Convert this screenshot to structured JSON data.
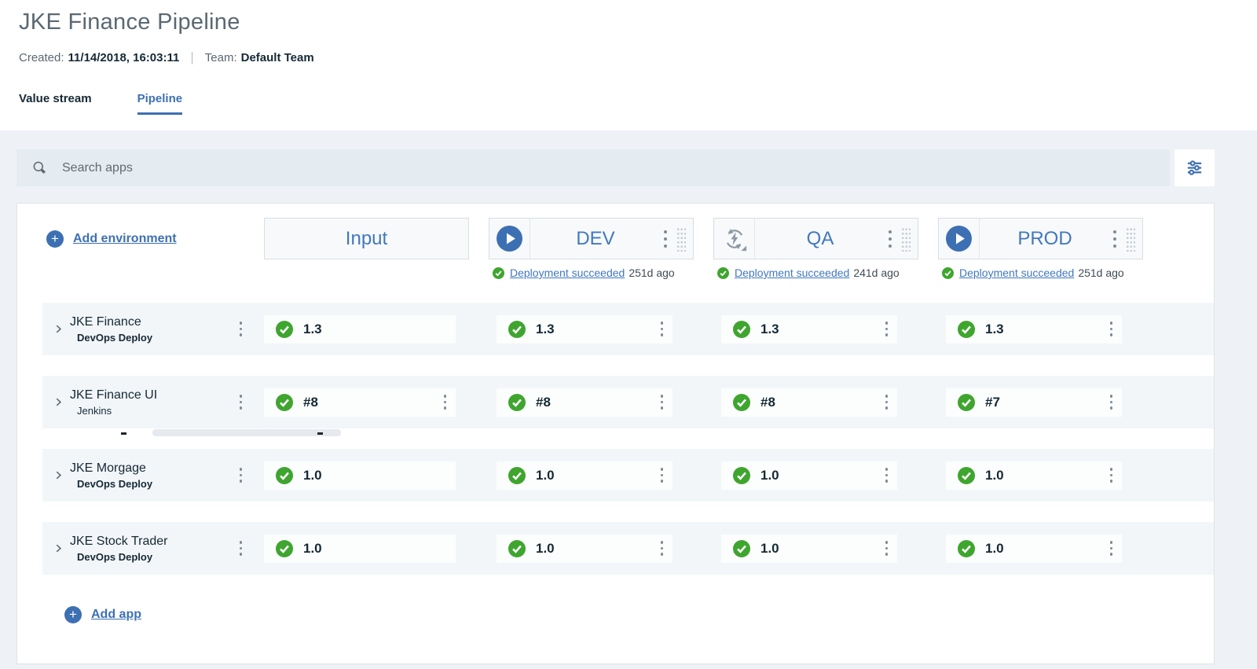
{
  "header": {
    "title": "JKE Finance Pipeline",
    "created_label": "Created:",
    "created_value": "11/14/2018, 16:03:11",
    "team_label": "Team:",
    "team_value": "Default Team"
  },
  "tabs": [
    {
      "label": "Value stream",
      "active": false
    },
    {
      "label": "Pipeline",
      "active": true
    }
  ],
  "search": {
    "placeholder": "Search apps",
    "icon": "search-icon",
    "filter_icon": "filter-sliders-icon"
  },
  "actions": {
    "add_environment": "Add environment",
    "add_app": "Add app"
  },
  "colors": {
    "accent_blue": "#3d70b2",
    "link_blue": "#4178be",
    "success_green": "#3fa52f"
  },
  "environments": [
    {
      "name": "Input",
      "kind": "input"
    },
    {
      "name": "DEV",
      "kind": "env",
      "icon": "play-icon",
      "status": {
        "icon": "success-check-icon",
        "link": "Deployment succeeded",
        "ago": "251d ago"
      }
    },
    {
      "name": "QA",
      "kind": "env",
      "icon": "auto-deploy-icon",
      "status": {
        "icon": "success-check-icon",
        "link": "Deployment succeeded",
        "ago": "241d ago"
      }
    },
    {
      "name": "PROD",
      "kind": "env",
      "icon": "play-icon",
      "status": {
        "icon": "success-check-icon",
        "link": "Deployment succeeded",
        "ago": "251d ago"
      }
    }
  ],
  "apps": [
    {
      "name": "JKE Finance",
      "subtitle": "DevOps Deploy",
      "subtitle_regular": false,
      "versions": [
        {
          "env": "Input",
          "value": "1.3",
          "status": "success",
          "menu": false
        },
        {
          "env": "DEV",
          "value": "1.3",
          "status": "success",
          "menu": true
        },
        {
          "env": "QA",
          "value": "1.3",
          "status": "success",
          "menu": true
        },
        {
          "env": "PROD",
          "value": "1.3",
          "status": "success",
          "menu": true
        }
      ]
    },
    {
      "name": "JKE Finance UI",
      "subtitle": "Jenkins",
      "subtitle_regular": true,
      "versions": [
        {
          "env": "Input",
          "value": "#8",
          "status": "success",
          "menu": true
        },
        {
          "env": "DEV",
          "value": "#8",
          "status": "success",
          "menu": true
        },
        {
          "env": "QA",
          "value": "#8",
          "status": "success",
          "menu": true
        },
        {
          "env": "PROD",
          "value": "#7",
          "status": "success",
          "menu": true
        }
      ]
    },
    {
      "name": "JKE Morgage",
      "subtitle": "DevOps Deploy",
      "subtitle_regular": false,
      "versions": [
        {
          "env": "Input",
          "value": "1.0",
          "status": "success",
          "menu": false
        },
        {
          "env": "DEV",
          "value": "1.0",
          "status": "success",
          "menu": true
        },
        {
          "env": "QA",
          "value": "1.0",
          "status": "success",
          "menu": true
        },
        {
          "env": "PROD",
          "value": "1.0",
          "status": "success",
          "menu": true
        }
      ]
    },
    {
      "name": "JKE Stock Trader",
      "subtitle": "DevOps Deploy",
      "subtitle_regular": false,
      "versions": [
        {
          "env": "Input",
          "value": "1.0",
          "status": "success",
          "menu": false
        },
        {
          "env": "DEV",
          "value": "1.0",
          "status": "success",
          "menu": true
        },
        {
          "env": "QA",
          "value": "1.0",
          "status": "success",
          "menu": true
        },
        {
          "env": "PROD",
          "value": "1.0",
          "status": "success",
          "menu": true
        }
      ]
    }
  ]
}
